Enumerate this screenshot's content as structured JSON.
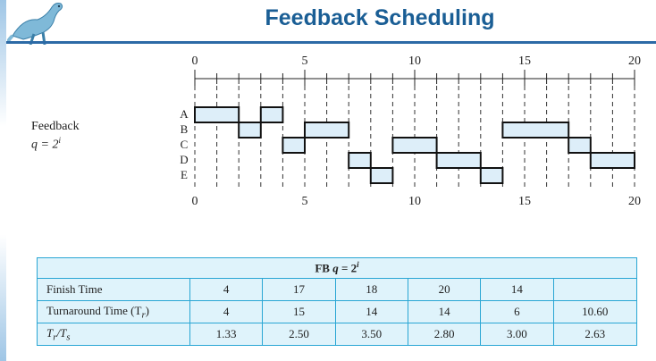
{
  "title": "Feedback Scheduling",
  "label": {
    "name": "Feedback",
    "formula_left": "q = 2",
    "formula_sup": "i"
  },
  "colors": {
    "title": "#1a5e95",
    "bar_fill": "#ddeef9",
    "table_border": "#29a6d4",
    "table_bg": "#dff3fb"
  },
  "chart_data": {
    "type": "gantt",
    "axis": {
      "min": 0,
      "max": 20,
      "ticks_labeled": [
        "0",
        "5",
        "10",
        "15",
        "20"
      ]
    },
    "processes": [
      "A",
      "B",
      "C",
      "D",
      "E"
    ],
    "segments": [
      {
        "process": "A",
        "start": 0,
        "end": 2
      },
      {
        "process": "A",
        "start": 3,
        "end": 4
      },
      {
        "process": "B",
        "start": 2,
        "end": 3
      },
      {
        "process": "B",
        "start": 5,
        "end": 7
      },
      {
        "process": "B",
        "start": 14,
        "end": 17
      },
      {
        "process": "C",
        "start": 4,
        "end": 5
      },
      {
        "process": "C",
        "start": 9,
        "end": 11
      },
      {
        "process": "C",
        "start": 17,
        "end": 18
      },
      {
        "process": "D",
        "start": 7,
        "end": 8
      },
      {
        "process": "D",
        "start": 11,
        "end": 13
      },
      {
        "process": "D",
        "start": 18,
        "end": 20
      },
      {
        "process": "E",
        "start": 8,
        "end": 9
      },
      {
        "process": "E",
        "start": 13,
        "end": 14
      }
    ]
  },
  "table": {
    "header_left": "FB ",
    "header_q": "q",
    "header_eq": " = 2",
    "header_sup": "i",
    "rows": [
      {
        "label": "Finish Time",
        "values": [
          "4",
          "17",
          "18",
          "20",
          "14",
          ""
        ]
      },
      {
        "label": "Turnaround Time (T",
        "label_sub": "r",
        "label_end": ")",
        "values": [
          "4",
          "15",
          "14",
          "14",
          "6",
          "10.60"
        ]
      },
      {
        "label": "T",
        "label_sub": "r",
        "label_mid": "/T",
        "label_sub2": "s",
        "values": [
          "1.33",
          "2.50",
          "3.50",
          "2.80",
          "3.00",
          "2.63"
        ]
      }
    ]
  }
}
